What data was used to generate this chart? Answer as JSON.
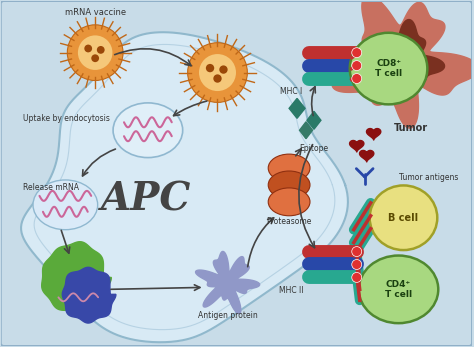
{
  "bg_color": "#c8dce8",
  "cell_bg": "#d8eaf5",
  "cell_border": "#90b8cc",
  "labels": {
    "mrna_vaccine": "mRNA vaccine",
    "uptake": "Uptake by endocytosis",
    "release_mrna": "Release mRNA",
    "apc": "APC",
    "proteasome": "Proteasome",
    "epitope": "Epitope",
    "antigen_protein": "Antigen protein",
    "mhc1": "MHC I",
    "mhc2": "MHC II",
    "cd8": "CD8⁺\nT cell",
    "cd4": "CD4⁺\nT cell",
    "bcell": "B cell",
    "tumor": "Tumor",
    "tumor_antigens": "Tumor antigens"
  },
  "colors": {
    "nanoparticle": "#e8943a",
    "nanoparticle_light": "#f5c87a",
    "mrna_wavy": "#cc6699",
    "apc_text": "#444444",
    "cd8_cell": "#a8d888",
    "cd4_cell": "#a8d888",
    "bcell_color": "#e8e090",
    "tumor_outer": "#c87868",
    "tumor_mid": "#b06858",
    "tumor_dark": "#7a3828",
    "epitope_teal": "#2a7a68",
    "proteasome_orange": "#d86838",
    "proteasome_dark": "#b84818",
    "antigen_green": "#58a840",
    "antigen_blue": "#3848a8",
    "mhc_red": "#c03030",
    "mhc_blue": "#2848a8",
    "mhc_teal": "#28a890",
    "antibody_dark": "#8b1010",
    "arrow_color": "#444444",
    "cell_outline": "#7aaac0"
  }
}
